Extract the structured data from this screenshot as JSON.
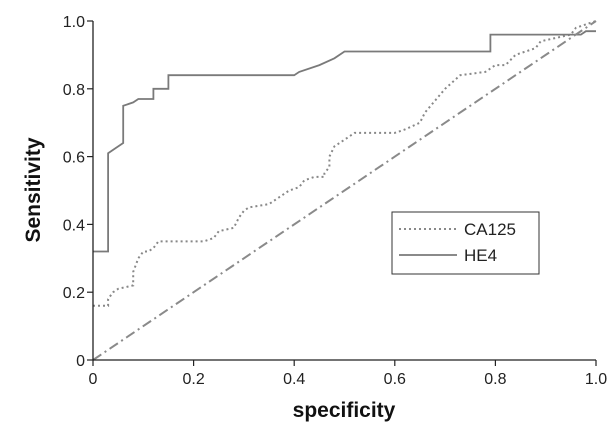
{
  "chart_data": {
    "type": "line",
    "title": "",
    "xlabel": "specificity",
    "ylabel": "Sensitivity",
    "xlim": [
      0,
      1.0
    ],
    "ylim": [
      0,
      1.0
    ],
    "x_ticks": [
      {
        "value": 0,
        "label": "0"
      },
      {
        "value": 0.2,
        "label": "0.2"
      },
      {
        "value": 0.4,
        "label": "0.4"
      },
      {
        "value": 0.6,
        "label": "0.6"
      },
      {
        "value": 0.8,
        "label": "0.8"
      },
      {
        "value": 1.0,
        "label": "1.0"
      }
    ],
    "y_ticks": [
      {
        "value": 0,
        "label": "0"
      },
      {
        "value": 0.2,
        "label": "0.2"
      },
      {
        "value": 0.4,
        "label": "0.4"
      },
      {
        "value": 0.6,
        "label": "0.6"
      },
      {
        "value": 0.8,
        "label": "0.8"
      },
      {
        "value": 1.0,
        "label": "1.0"
      }
    ],
    "grid": false,
    "legend_position": "right",
    "series": [
      {
        "name": "CA125",
        "line_style": "dotted",
        "color": "#888888",
        "x": [
          0.0,
          0.03,
          0.03,
          0.04,
          0.05,
          0.08,
          0.08,
          0.09,
          0.1,
          0.11,
          0.12,
          0.13,
          0.22,
          0.24,
          0.25,
          0.28,
          0.29,
          0.3,
          0.31,
          0.35,
          0.37,
          0.38,
          0.39,
          0.41,
          0.42,
          0.44,
          0.46,
          0.46,
          0.47,
          0.47,
          0.48,
          0.5,
          0.52,
          0.57,
          0.6,
          0.62,
          0.65,
          0.66,
          0.7,
          0.73,
          0.78,
          0.79,
          0.8,
          0.82,
          0.84,
          0.88,
          0.89,
          0.95,
          0.96,
          1.0
        ],
        "y": [
          0.16,
          0.16,
          0.18,
          0.2,
          0.21,
          0.22,
          0.26,
          0.3,
          0.32,
          0.32,
          0.33,
          0.35,
          0.35,
          0.36,
          0.38,
          0.39,
          0.42,
          0.44,
          0.45,
          0.46,
          0.48,
          0.49,
          0.5,
          0.51,
          0.53,
          0.54,
          0.54,
          0.55,
          0.57,
          0.6,
          0.63,
          0.65,
          0.67,
          0.67,
          0.67,
          0.68,
          0.7,
          0.73,
          0.8,
          0.84,
          0.85,
          0.86,
          0.87,
          0.87,
          0.9,
          0.92,
          0.94,
          0.96,
          0.98,
          1.0
        ]
      },
      {
        "name": "HE4",
        "line_style": "solid",
        "color": "#7a7a7a",
        "x": [
          0.0,
          0.03,
          0.03,
          0.05,
          0.06,
          0.06,
          0.08,
          0.09,
          0.1,
          0.12,
          0.12,
          0.15,
          0.15,
          0.4,
          0.41,
          0.45,
          0.48,
          0.5,
          0.77,
          0.79,
          0.79,
          0.97,
          0.98,
          1.0
        ],
        "y": [
          0.32,
          0.32,
          0.61,
          0.63,
          0.64,
          0.75,
          0.76,
          0.77,
          0.77,
          0.77,
          0.8,
          0.8,
          0.84,
          0.84,
          0.85,
          0.87,
          0.89,
          0.91,
          0.91,
          0.91,
          0.96,
          0.96,
          0.97,
          0.97
        ]
      },
      {
        "name": "",
        "line_style": "dashdot",
        "color": "#8a8a8a",
        "x": [
          0.0,
          1.0
        ],
        "y": [
          0.0,
          1.0
        ]
      }
    ]
  }
}
